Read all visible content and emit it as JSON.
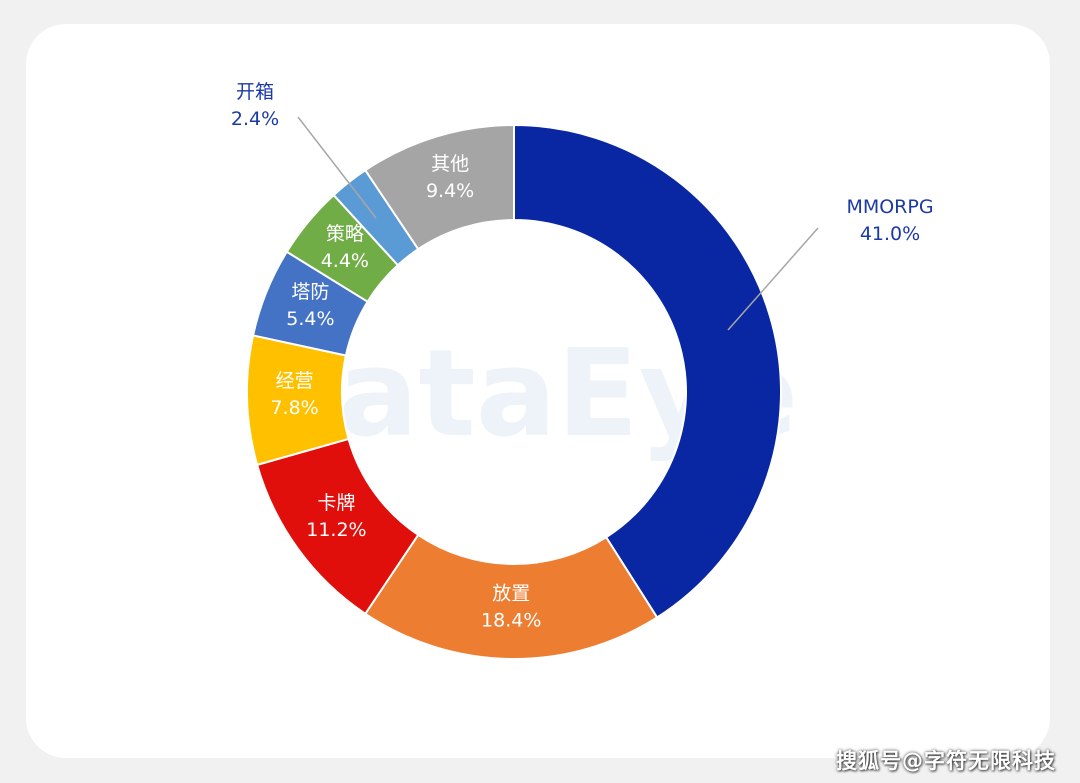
{
  "chart_data": {
    "type": "pie",
    "donut": true,
    "title": "",
    "background_watermark": "DataEye",
    "legend": "none",
    "slices": [
      {
        "label": "MMORPG",
        "percent_label": "41.0%",
        "value": 41.0,
        "color": "#0a27a3",
        "label_position": "outside",
        "label_color": "#1b3aa6"
      },
      {
        "label": "放置",
        "percent_label": "18.4%",
        "value": 18.4,
        "color": "#ed7d31",
        "label_position": "inside",
        "label_color": "#ffffff"
      },
      {
        "label": "卡牌",
        "percent_label": "11.2%",
        "value": 11.2,
        "color": "#e00f0b",
        "label_position": "inside",
        "label_color": "#ffffff"
      },
      {
        "label": "经营",
        "percent_label": "7.8%",
        "value": 7.8,
        "color": "#ffc000",
        "label_position": "inside",
        "label_color": "#ffffff"
      },
      {
        "label": "塔防",
        "percent_label": "5.4%",
        "value": 5.4,
        "color": "#4472c4",
        "label_position": "inside",
        "label_color": "#ffffff"
      },
      {
        "label": "策略",
        "percent_label": "4.4%",
        "value": 4.4,
        "color": "#70ad47",
        "label_position": "inside",
        "label_color": "#ffffff"
      },
      {
        "label": "开箱",
        "percent_label": "2.4%",
        "value": 2.4,
        "color": "#5b9bd5",
        "label_position": "outside",
        "label_color": "#1b3aa6"
      },
      {
        "label": "其他",
        "percent_label": "9.4%",
        "value": 9.4,
        "color": "#a5a5a5",
        "label_position": "inside",
        "label_color": "#ffffff"
      }
    ]
  },
  "watermark_text": "搜狐号@字符无限科技"
}
